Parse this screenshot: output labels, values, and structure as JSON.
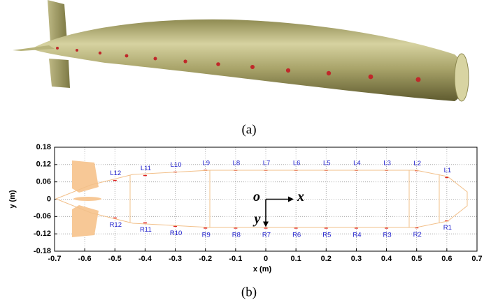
{
  "caption_a": "(a)",
  "caption_b": "(b)",
  "chart_data": {
    "type": "scatter",
    "xlabel": "x (m)",
    "ylabel": "y (m)",
    "xlim": [
      -0.7,
      0.7
    ],
    "ylim": [
      -0.18,
      0.18
    ],
    "xticks": [
      -0.7,
      -0.6,
      -0.5,
      -0.4,
      -0.3,
      -0.2,
      -0.1,
      0,
      0.1,
      0.2,
      0.3,
      0.4,
      0.5,
      0.6,
      0.7
    ],
    "yticks": [
      -0.18,
      -0.12,
      -0.06,
      0,
      0.06,
      0.12,
      0.18
    ],
    "grid": true,
    "color": "#e02020",
    "label_color": "#1a1acc",
    "origin_label": "o",
    "x_arrow_label": "x",
    "y_arrow_label": "y",
    "points": {
      "labels": [
        "L1",
        "L2",
        "L3",
        "L4",
        "L5",
        "L6",
        "L7",
        "L8",
        "L9",
        "L10",
        "L11",
        "L12",
        "R1",
        "R2",
        "R3",
        "R4",
        "R5",
        "R6",
        "R7",
        "R8",
        "R9",
        "R10",
        "R11",
        "R12"
      ],
      "x": [
        0.6,
        0.5,
        0.4,
        0.3,
        0.2,
        0.1,
        0,
        -0.1,
        -0.2,
        -0.3,
        -0.4,
        -0.5,
        0.6,
        0.5,
        0.4,
        0.3,
        0.2,
        0.1,
        0,
        -0.1,
        -0.2,
        -0.3,
        -0.4,
        -0.5
      ],
      "y": [
        0.075,
        0.099,
        0.1,
        0.1,
        0.1,
        0.1,
        0.1,
        0.1,
        0.1,
        0.094,
        0.082,
        0.065,
        -0.075,
        -0.099,
        -0.1,
        -0.1,
        -0.1,
        -0.1,
        -0.1,
        -0.1,
        -0.1,
        -0.094,
        -0.082,
        -0.065
      ]
    }
  }
}
